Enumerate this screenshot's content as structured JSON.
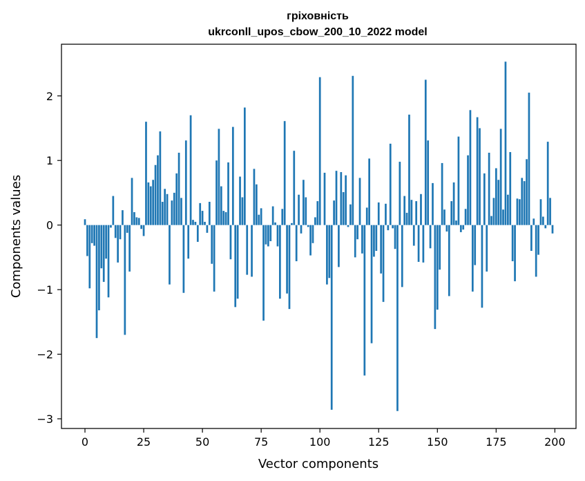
{
  "chart_data": {
    "type": "bar",
    "title": "гріховність",
    "subtitle": "ukrconll_upos_cbow_200_10_2022 model",
    "xlabel": "Vector components",
    "ylabel": "Components values",
    "xlim": [
      -10,
      209
    ],
    "ylim": [
      -3.15,
      2.8
    ],
    "xticks": [
      0,
      25,
      50,
      75,
      100,
      125,
      150,
      175,
      200
    ],
    "yticks": [
      -3,
      -2,
      -1,
      0,
      1,
      2
    ],
    "ytick_labels": [
      "−3",
      "−2",
      "−1",
      "0",
      "1",
      "2"
    ],
    "grid": false,
    "bar_color": "#1f77b4",
    "x": [
      0,
      1,
      2,
      3,
      4,
      5,
      6,
      7,
      8,
      9,
      10,
      11,
      12,
      13,
      14,
      15,
      16,
      17,
      18,
      19,
      20,
      21,
      22,
      23,
      24,
      25,
      26,
      27,
      28,
      29,
      30,
      31,
      32,
      33,
      34,
      35,
      36,
      37,
      38,
      39,
      40,
      41,
      42,
      43,
      44,
      45,
      46,
      47,
      48,
      49,
      50,
      51,
      52,
      53,
      54,
      55,
      56,
      57,
      58,
      59,
      60,
      61,
      62,
      63,
      64,
      65,
      66,
      67,
      68,
      69,
      70,
      71,
      72,
      73,
      74,
      75,
      76,
      77,
      78,
      79,
      80,
      81,
      82,
      83,
      84,
      85,
      86,
      87,
      88,
      89,
      90,
      91,
      92,
      93,
      94,
      95,
      96,
      97,
      98,
      99,
      100,
      101,
      102,
      103,
      104,
      105,
      106,
      107,
      108,
      109,
      110,
      111,
      112,
      113,
      114,
      115,
      116,
      117,
      118,
      119,
      120,
      121,
      122,
      123,
      124,
      125,
      126,
      127,
      128,
      129,
      130,
      131,
      132,
      133,
      134,
      135,
      136,
      137,
      138,
      139,
      140,
      141,
      142,
      143,
      144,
      145,
      146,
      147,
      148,
      149,
      150,
      151,
      152,
      153,
      154,
      155,
      156,
      157,
      158,
      159,
      160,
      161,
      162,
      163,
      164,
      165,
      166,
      167,
      168,
      169,
      170,
      171,
      172,
      173,
      174,
      175,
      176,
      177,
      178,
      179,
      180,
      181,
      182,
      183,
      184,
      185,
      186,
      187,
      188,
      189,
      190,
      191,
      192,
      193,
      194,
      195,
      196,
      197,
      198,
      199
    ],
    "values": [
      0.09,
      -0.48,
      -0.98,
      -0.28,
      -0.32,
      -1.75,
      -1.32,
      -0.67,
      -0.88,
      -0.52,
      -1.12,
      -0.04,
      0.45,
      -0.2,
      -0.58,
      -0.22,
      0.23,
      -1.7,
      -0.12,
      -0.72,
      0.73,
      0.2,
      0.12,
      0.11,
      -0.06,
      -0.17,
      1.6,
      0.66,
      0.6,
      0.7,
      0.93,
      1.08,
      1.45,
      0.36,
      0.56,
      0.48,
      -0.92,
      0.38,
      0.5,
      0.8,
      1.12,
      0.42,
      -1.05,
      1.31,
      -0.52,
      1.7,
      0.08,
      0.05,
      -0.26,
      0.34,
      0.22,
      0.05,
      -0.12,
      0.36,
      -0.6,
      -1.03,
      1.0,
      1.49,
      0.6,
      0.22,
      0.2,
      0.97,
      -0.53,
      1.52,
      -1.27,
      -1.14,
      0.75,
      0.43,
      1.82,
      -0.77,
      0.0,
      -0.8,
      0.87,
      0.63,
      0.16,
      0.26,
      -1.48,
      -0.3,
      -0.33,
      -0.25,
      0.29,
      0.04,
      -0.33,
      -1.14,
      0.25,
      1.61,
      -1.06,
      -1.3,
      0.03,
      1.15,
      -0.56,
      0.47,
      -0.13,
      0.7,
      0.43,
      -0.03,
      -0.47,
      -0.28,
      0.12,
      0.37,
      2.29,
      0.0,
      0.81,
      -0.92,
      -0.82,
      -2.86,
      0.38,
      0.84,
      -0.65,
      0.82,
      0.51,
      0.77,
      -0.03,
      0.32,
      2.31,
      -0.5,
      -0.22,
      0.73,
      -0.44,
      -2.33,
      0.27,
      1.03,
      -1.83,
      -0.49,
      -0.4,
      0.35,
      -0.75,
      -1.19,
      0.33,
      -0.08,
      1.26,
      -0.05,
      -0.37,
      -2.88,
      0.98,
      -0.96,
      0.45,
      0.19,
      1.71,
      0.39,
      -0.32,
      0.37,
      -0.57,
      0.48,
      -0.58,
      2.25,
      1.31,
      -0.36,
      0.65,
      -1.61,
      -1.31,
      -0.69,
      0.96,
      0.24,
      -0.1,
      -1.1,
      0.37,
      0.66,
      0.07,
      1.37,
      -0.11,
      -0.07,
      0.25,
      1.08,
      1.78,
      -1.03,
      -0.62,
      1.67,
      1.5,
      -1.28,
      0.8,
      -0.72,
      1.12,
      0.14,
      0.42,
      0.88,
      0.7,
      1.49,
      0.24,
      2.53,
      0.47,
      1.13,
      -0.56,
      -0.87,
      0.41,
      0.4,
      0.73,
      0.68,
      1.02,
      2.05,
      -0.4,
      0.1,
      -0.8,
      -0.46,
      0.4,
      0.13,
      -0.05,
      1.29,
      0.42,
      -0.13
    ]
  }
}
